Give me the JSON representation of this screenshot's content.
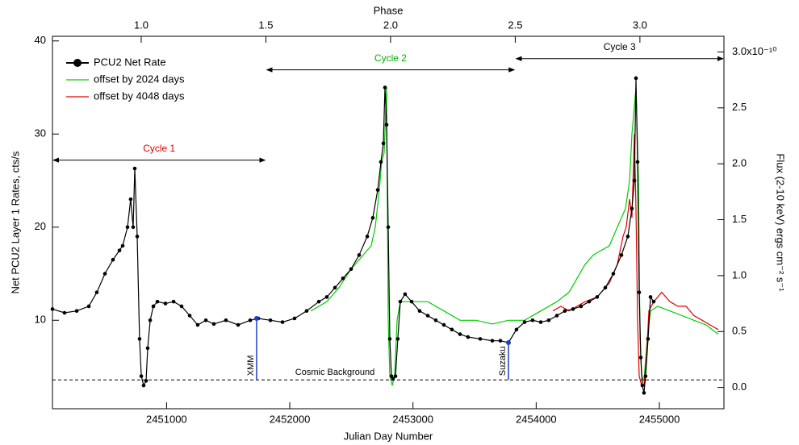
{
  "chart_data": {
    "type": "line",
    "xlabel": "Julian Day Number",
    "ylabel": "Net PCU2 Layer 1 Rates, cts/s",
    "x2label": "Phase",
    "y2label": "Flux (2-10 keV) ergs cm⁻² s⁻¹",
    "xlim": [
      2450074,
      2455524
    ],
    "xticks": [
      2451000,
      2452000,
      2453000,
      2454000,
      2455000
    ],
    "ylim": [
      0.5,
      40.5
    ],
    "yticks": [
      10,
      20,
      30,
      40
    ],
    "x2lim": [
      0.644,
      3.337
    ],
    "x2ticks": [
      {
        "value": 1,
        "label": "1.0"
      },
      {
        "value": 1.5,
        "label": "1.5"
      },
      {
        "value": 2,
        "label": "2.0"
      },
      {
        "value": 2.5,
        "label": "2.5"
      },
      {
        "value": 3,
        "label": "3.0"
      }
    ],
    "y2lim": [
      -0.19,
      3.14
    ],
    "y2ticks": [
      {
        "value": 0,
        "label": "0.0"
      },
      {
        "value": 0.5,
        "label": "0.5"
      },
      {
        "value": 1,
        "label": "1.0"
      },
      {
        "value": 1.5,
        "label": "1.5"
      },
      {
        "value": 2,
        "label": "2.0"
      },
      {
        "value": 2.5,
        "label": "2.5"
      },
      {
        "value": 3,
        "label": "3.0x10⁻¹⁰"
      }
    ],
    "legend": "upper left",
    "series": [
      {
        "name": "offset by 2024 days",
        "color": "#00cc00",
        "marker": false,
        "x": [
          2452170,
          2452236,
          2452301,
          2452399,
          2452498,
          2452596,
          2452661,
          2452694,
          2452727,
          2452746,
          2452766,
          2452786,
          2452799,
          2452812,
          2452832,
          2452851,
          2452871,
          2452897,
          2452989,
          2453120,
          2453251,
          2453382,
          2453513,
          2453644,
          2453775,
          2453906,
          2454037,
          2454168,
          2454266,
          2454332,
          2454397,
          2454463,
          2454528,
          2454594,
          2454659,
          2454725,
          2454758,
          2454777,
          2454797,
          2454810,
          2454830,
          2454843,
          2454856,
          2454875,
          2454901,
          2454928,
          2454986,
          2455085,
          2455184,
          2455281,
          2455380,
          2455478
        ],
        "values": [
          11,
          11.5,
          12,
          13.5,
          15.5,
          17,
          18,
          20,
          24,
          27,
          28,
          35,
          10,
          4,
          3,
          4,
          10,
          12,
          12,
          12,
          11,
          10,
          10,
          9.6,
          10,
          10,
          11,
          12,
          13,
          14.5,
          16,
          17,
          17.5,
          18,
          20,
          22,
          25,
          30,
          33,
          35,
          25,
          8,
          4,
          3.5,
          8,
          11,
          11.5,
          11,
          10.5,
          10,
          9.5,
          8.5
        ]
      },
      {
        "name": "offset by 4048 days",
        "color": "#e00000",
        "marker": false,
        "x": [
          2454135,
          2454201,
          2454266,
          2454332,
          2454397,
          2454495,
          2454594,
          2454659,
          2454705,
          2454731,
          2454758,
          2454777,
          2454797,
          2454810,
          2454823,
          2454836,
          2454856,
          2454875,
          2454895,
          2454915,
          2454954,
          2455019,
          2455085,
          2455150,
          2455216,
          2455281,
          2455347,
          2455412,
          2455478
        ],
        "values": [
          11,
          11.5,
          11,
          11.5,
          12,
          12.5,
          14,
          16,
          19,
          20,
          23,
          21,
          30,
          22,
          10,
          4,
          3,
          3,
          6,
          11,
          12,
          13,
          12,
          11.5,
          11.5,
          10.5,
          10,
          9.5,
          9
        ]
      },
      {
        "name": "PCU2 Net Rate",
        "color": "#000000",
        "marker": true,
        "x": [
          2450074,
          2450172,
          2450271,
          2450369,
          2450434,
          2450500,
          2450565,
          2450618,
          2450644,
          2450683,
          2450709,
          2450729,
          2450742,
          2450762,
          2450781,
          2450795,
          2450814,
          2450834,
          2450847,
          2450867,
          2450893,
          2450926,
          2450991,
          2451057,
          2451122,
          2451188,
          2451253,
          2451319,
          2451384,
          2451482,
          2451581,
          2451679,
          2451744,
          2451843,
          2451941,
          2452039,
          2452137,
          2452236,
          2452301,
          2452367,
          2452432,
          2452498,
          2452563,
          2452629,
          2452674,
          2452714,
          2452740,
          2452760,
          2452773,
          2452786,
          2452799,
          2452812,
          2452825,
          2452838,
          2452858,
          2452877,
          2452897,
          2452936,
          2452989,
          2453054,
          2453120,
          2453185,
          2453251,
          2453316,
          2453382,
          2453447,
          2453546,
          2453644,
          2453709,
          2453775,
          2453840,
          2453906,
          2453971,
          2454037,
          2454102,
          2454168,
          2454233,
          2454299,
          2454364,
          2454430,
          2454495,
          2454561,
          2454626,
          2454692,
          2454744,
          2454777,
          2454797,
          2454810,
          2454823,
          2454836,
          2454849,
          2454862,
          2454875,
          2454888,
          2454908,
          2454928,
          2454954
        ],
        "values": [
          11.2,
          10.8,
          11,
          11.5,
          13,
          15,
          16.5,
          17.5,
          18,
          20,
          23,
          20,
          26.3,
          19,
          8,
          4,
          3,
          3.5,
          7,
          10,
          11.5,
          12,
          11.8,
          12,
          11.5,
          10.5,
          9.5,
          10,
          9.6,
          10,
          9.5,
          10,
          10.2,
          10,
          9.8,
          10.2,
          11,
          12,
          12.5,
          13.5,
          14.5,
          15.5,
          17,
          19,
          21,
          24,
          27,
          29,
          35,
          31,
          20,
          8,
          4,
          3.7,
          4,
          8,
          12,
          12.8,
          12,
          11,
          10.5,
          10,
          9.5,
          9,
          8.5,
          8.2,
          8,
          7.8,
          7.8,
          7.6,
          9,
          9.8,
          10,
          9.8,
          10,
          10.5,
          11,
          11.2,
          11.5,
          12,
          12.5,
          13.5,
          15,
          17,
          19,
          22,
          25,
          36,
          27,
          13,
          6,
          3,
          2.2,
          4,
          8,
          12.5,
          12
        ]
      }
    ],
    "background": {
      "label": "Cosmic Background",
      "y": 3.6
    },
    "markers": [
      {
        "label": "XMM",
        "x": 2451731,
        "y": [
          3.6,
          10.2
        ],
        "color": "#2040c0"
      },
      {
        "label": "Suzaku",
        "x": 2453775,
        "y": [
          3.6,
          7.6
        ],
        "color": "#2040c0"
      }
    ],
    "cycles": [
      {
        "text": "Cycle 1",
        "color": "#e00000",
        "x": [
          0.644,
          1.5
        ],
        "y": 27.2
      },
      {
        "text": "Cycle 2",
        "color": "#00b000",
        "x": [
          1.5,
          2.5
        ],
        "y": 36.9
      },
      {
        "text": "Cycle 3",
        "color": "#000000",
        "x": [
          2.5,
          3.337
        ],
        "y": 38.1
      }
    ]
  }
}
